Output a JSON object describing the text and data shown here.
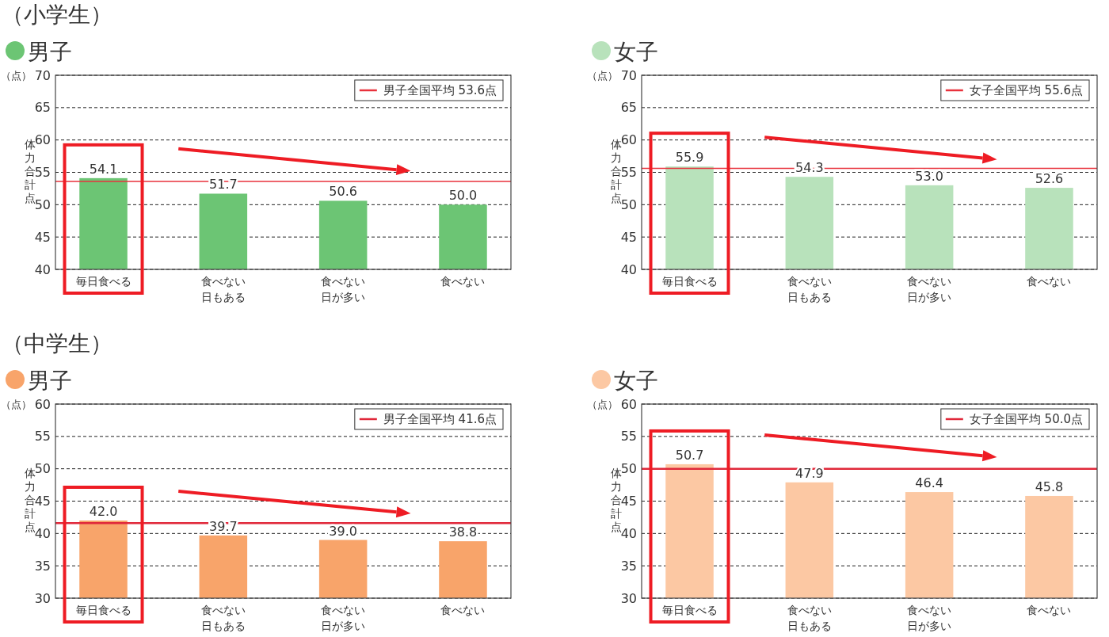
{
  "chart_data": [
    {
      "type": "bar",
      "subtitle": "（小学生）",
      "title": "男子",
      "ylabel": "体力合計点",
      "annotations": [
        "（点）"
      ],
      "categories": [
        "毎日食べる",
        "食べない日もある",
        "食べない日が多い",
        "食べない"
      ],
      "values": [
        54.1,
        51.7,
        50.6,
        50.0
      ],
      "value_labels": [
        "54.1",
        "51.7",
        "50.6",
        "50.0"
      ],
      "color": "#6cc574",
      "ylim": [
        40,
        70
      ],
      "yticks": [
        40,
        45,
        50,
        55,
        60,
        65,
        70
      ],
      "grid": "y",
      "ref_lines": [
        {
          "axis": "y",
          "value": 53.6,
          "label": "男子全国平均 53.6点",
          "color": "#e8323c"
        }
      ]
    },
    {
      "type": "bar",
      "title": "女子",
      "ylabel": "体力合計点",
      "annotations": [
        "（点）"
      ],
      "categories": [
        "毎日食べる",
        "食べない日もある",
        "食べない日が多い",
        "食べない"
      ],
      "values": [
        55.9,
        54.3,
        53.0,
        52.6
      ],
      "value_labels": [
        "55.9",
        "54.3",
        "53.0",
        "52.6"
      ],
      "color": "#b8e2bb",
      "ylim": [
        40,
        70
      ],
      "yticks": [
        40,
        45,
        50,
        55,
        60,
        65,
        70
      ],
      "grid": "y",
      "ref_lines": [
        {
          "axis": "y",
          "value": 55.6,
          "label": "女子全国平均 55.6点",
          "color": "#e8323c"
        }
      ]
    },
    {
      "type": "bar",
      "subtitle": "（中学生）",
      "title": "男子",
      "ylabel": "体力合計点",
      "annotations": [
        "（点）"
      ],
      "categories": [
        "毎日食べる",
        "食べない日もある",
        "食べない日が多い",
        "食べない"
      ],
      "values": [
        42.0,
        39.7,
        39.0,
        38.8
      ],
      "value_labels": [
        "42.0",
        "39.7",
        "39.0",
        "38.8"
      ],
      "color": "#f8a46a",
      "ylim": [
        30,
        60
      ],
      "yticks": [
        30,
        35,
        40,
        45,
        50,
        55,
        60
      ],
      "grid": "y",
      "ref_lines": [
        {
          "axis": "y",
          "value": 41.6,
          "label": "男子全国平均 41.6点",
          "color": "#e0283a"
        }
      ]
    },
    {
      "type": "bar",
      "title": "女子",
      "ylabel": "体力合計点",
      "annotations": [
        "（点）"
      ],
      "categories": [
        "毎日食べる",
        "食べない日もある",
        "食べない日が多い",
        "食べない"
      ],
      "values": [
        50.7,
        47.9,
        46.4,
        45.8
      ],
      "value_labels": [
        "50.7",
        "47.9",
        "46.4",
        "45.8"
      ],
      "color": "#fcc8a3",
      "ylim": [
        30,
        60
      ],
      "yticks": [
        30,
        35,
        40,
        45,
        50,
        55,
        60
      ],
      "grid": "y",
      "ref_lines": [
        {
          "axis": "y",
          "value": 50.0,
          "label": "女子全国平均 50.0点",
          "color": "#e0283a"
        }
      ]
    }
  ]
}
